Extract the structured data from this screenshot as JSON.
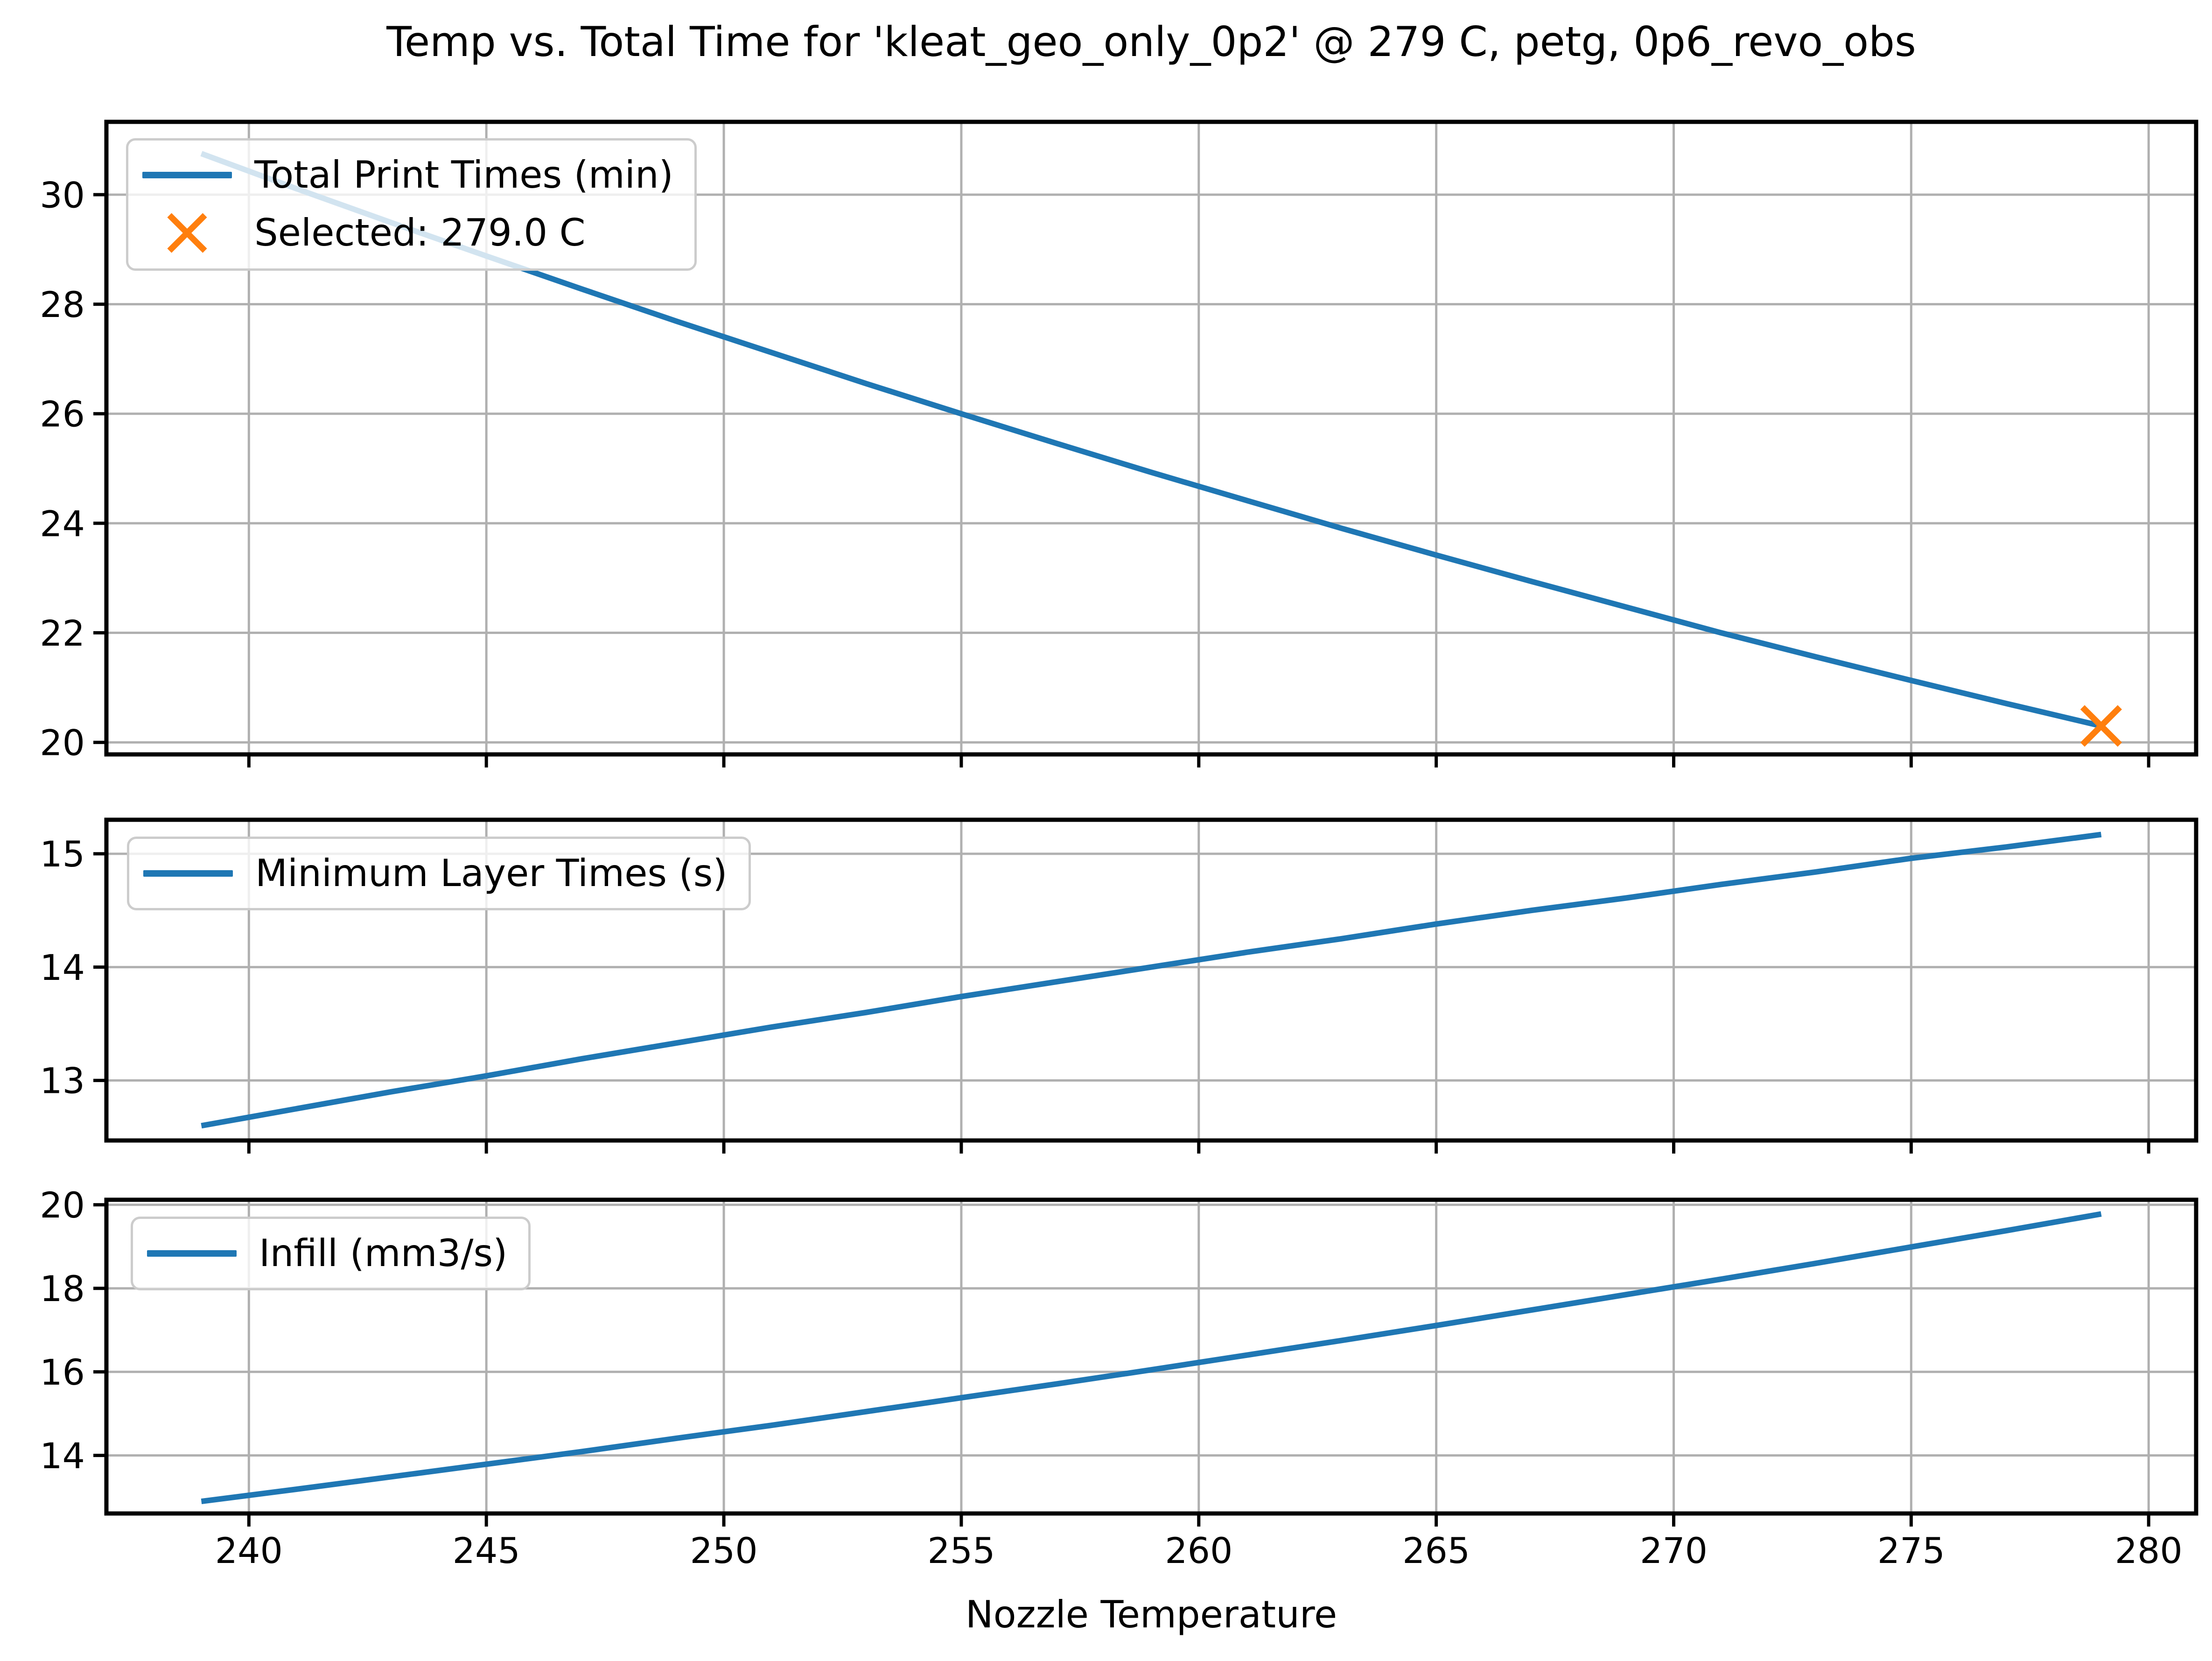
{
  "title": "Temp vs. Total Time for 'kleat_geo_only_0p2' @ 279 C, petg, 0p6_revo_obs",
  "xlabel": "Nozzle Temperature",
  "colors": {
    "line": "#1f77b4",
    "selected": "#ff7f0e",
    "grid": "#b0b0b0",
    "spine": "#000000",
    "tick_text": "#000000",
    "legend_border": "#cccccc"
  },
  "x_axis": {
    "lim": [
      237,
      281
    ],
    "ticks": [
      240,
      245,
      250,
      255,
      260,
      265,
      270,
      275,
      280
    ]
  },
  "chart_data": [
    {
      "type": "line",
      "title": "",
      "legend": [
        "Total Print Times (min)",
        "Selected: 279.0 C"
      ],
      "ylabel": "",
      "ylim": [
        19.78,
        31.33
      ],
      "yticks": [
        20,
        22,
        24,
        26,
        28,
        30
      ],
      "x": [
        239,
        241,
        243,
        245,
        247,
        249,
        251,
        253,
        255,
        257,
        259,
        261,
        263,
        265,
        267,
        269,
        271,
        273,
        275,
        277,
        279
      ],
      "values": [
        30.75,
        30.11,
        29.49,
        28.88,
        28.28,
        27.69,
        27.12,
        26.55,
        26.0,
        25.46,
        24.93,
        24.42,
        23.91,
        23.42,
        22.94,
        22.47,
        22.0,
        21.56,
        21.13,
        20.71,
        20.3
      ],
      "selected_point": {
        "x": 279.0,
        "y": 20.3
      },
      "grid": true,
      "legend_position": "upper-left"
    },
    {
      "type": "line",
      "title": "",
      "legend": [
        "Minimum Layer Times (s)"
      ],
      "ylabel": "",
      "ylim": [
        12.47,
        15.3
      ],
      "yticks": [
        13,
        14,
        15
      ],
      "x": [
        239,
        241,
        243,
        245,
        247,
        249,
        251,
        253,
        255,
        257,
        259,
        261,
        263,
        265,
        267,
        269,
        271,
        273,
        275,
        277,
        279
      ],
      "values": [
        12.6,
        12.75,
        12.9,
        13.04,
        13.19,
        13.33,
        13.47,
        13.6,
        13.74,
        13.87,
        14.0,
        14.13,
        14.25,
        14.38,
        14.5,
        14.61,
        14.73,
        14.84,
        14.96,
        15.06,
        15.17
      ],
      "grid": true,
      "legend_position": "upper-left"
    },
    {
      "type": "line",
      "title": "",
      "legend": [
        "Infill (mm3/s)"
      ],
      "ylabel": "",
      "ylim": [
        12.61,
        20.12
      ],
      "yticks": [
        14,
        16,
        18,
        20
      ],
      "x": [
        239,
        241,
        243,
        245,
        247,
        249,
        251,
        253,
        255,
        257,
        259,
        261,
        263,
        265,
        267,
        269,
        271,
        273,
        275,
        277,
        279
      ],
      "values": [
        12.9,
        13.19,
        13.49,
        13.79,
        14.09,
        14.41,
        14.72,
        15.05,
        15.38,
        15.71,
        16.05,
        16.4,
        16.75,
        17.11,
        17.48,
        17.85,
        18.22,
        18.6,
        18.99,
        19.38,
        19.78
      ],
      "grid": true,
      "legend_position": "upper-left"
    }
  ]
}
